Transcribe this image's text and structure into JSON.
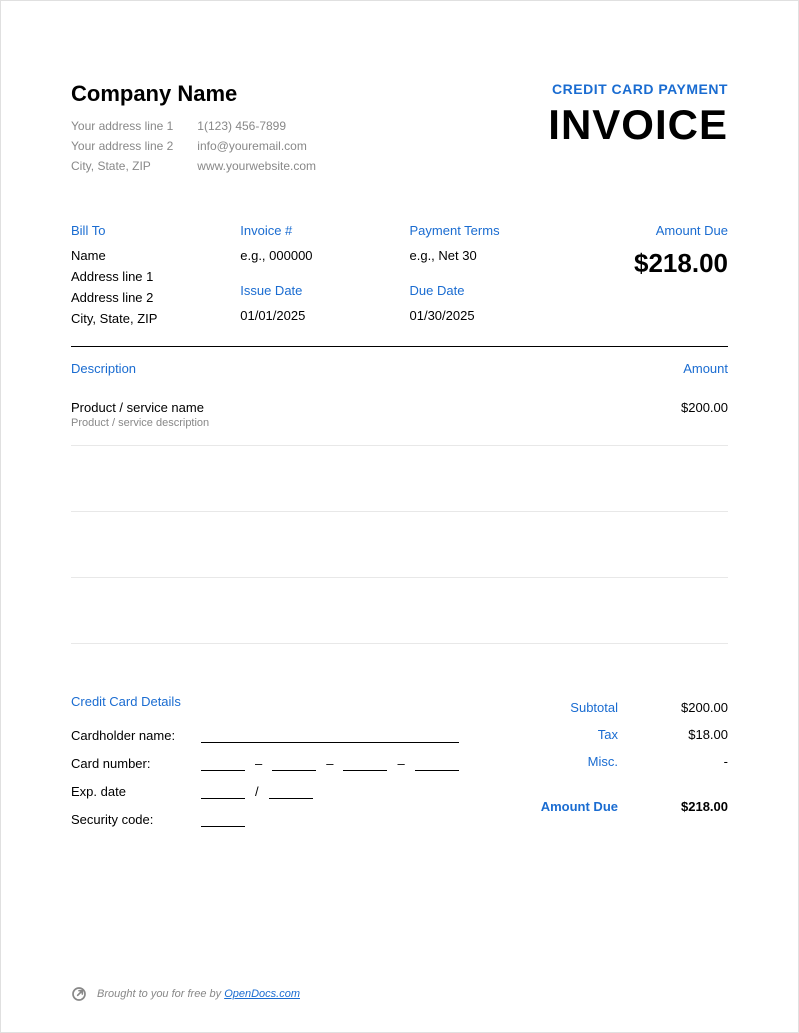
{
  "colors": {
    "accent": "#1a6cd1",
    "text": "#000000",
    "muted": "#888888",
    "border_light": "#e8e8e8",
    "border_dark": "#000000",
    "page_border": "#e0e0e0",
    "background": "#ffffff"
  },
  "company": {
    "name": "Company Name",
    "address1": "Your address line 1",
    "address2": "Your address line 2",
    "city_state_zip": "City, State, ZIP",
    "phone": "1(123) 456-7899",
    "email": "info@youremail.com",
    "website": "www.yourwebsite.com"
  },
  "title": {
    "credit_line": "CREDIT CARD PAYMENT",
    "invoice": "INVOICE"
  },
  "bill_to": {
    "label": "Bill To",
    "name": "Name",
    "address1": "Address line 1",
    "address2": "Address line 2",
    "city_state_zip": "City, State, ZIP"
  },
  "invoice_meta": {
    "invoice_num_label": "Invoice #",
    "invoice_num": "e.g., 000000",
    "issue_date_label": "Issue Date",
    "issue_date": "01/01/2025",
    "payment_terms_label": "Payment Terms",
    "payment_terms": "e.g., Net 30",
    "due_date_label": "Due Date",
    "due_date": "01/30/2025",
    "amount_due_label": "Amount Due",
    "amount_due": "$218.00"
  },
  "line_items": {
    "desc_label": "Description",
    "amount_label": "Amount",
    "rows": [
      {
        "name": "Product / service name",
        "desc": "Product / service description",
        "amount": "$200.00"
      }
    ],
    "empty_rows": 3
  },
  "cc": {
    "title": "Credit Card Details",
    "cardholder_label": "Cardholder name:",
    "card_number_label": "Card number:",
    "exp_date_label": "Exp. date",
    "security_code_label": "Security code:",
    "dash": "–",
    "slash": "/"
  },
  "totals": {
    "subtotal_label": "Subtotal",
    "subtotal": "$200.00",
    "tax_label": "Tax",
    "tax": "$18.00",
    "misc_label": "Misc.",
    "misc": "-",
    "amount_due_label": "Amount Due",
    "amount_due": "$218.00"
  },
  "footer": {
    "prefix": "Brought to you for free by ",
    "link_text": "OpenDocs.com"
  }
}
